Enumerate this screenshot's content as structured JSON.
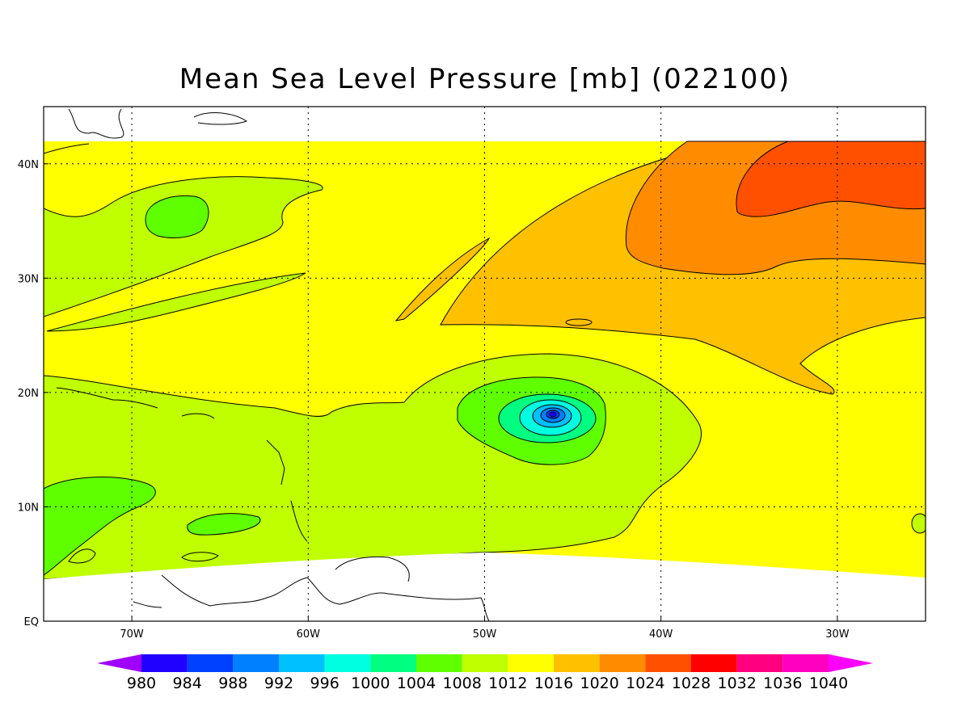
{
  "title": "Mean Sea Level Pressure [mb] (022100)",
  "map": {
    "lon_range": [
      -75,
      -25
    ],
    "lat_range": [
      0,
      45
    ],
    "x_ticks": [
      {
        "lon": -70,
        "label": "70W"
      },
      {
        "lon": -60,
        "label": "60W"
      },
      {
        "lon": -50,
        "label": "50W"
      },
      {
        "lon": -40,
        "label": "40W"
      },
      {
        "lon": -30,
        "label": "30W"
      }
    ],
    "y_ticks": [
      {
        "lat": 0,
        "label": "EQ"
      },
      {
        "lat": 10,
        "label": "10N"
      },
      {
        "lat": 20,
        "label": "20N"
      },
      {
        "lat": 30,
        "label": "30N"
      },
      {
        "lat": 40,
        "label": "40N"
      }
    ],
    "grid": "dotted",
    "low_center": {
      "lon": -46,
      "lat": 18
    }
  },
  "colorbar": {
    "levels": [
      980,
      984,
      988,
      992,
      996,
      1000,
      1004,
      1008,
      1012,
      1016,
      1020,
      1024,
      1028,
      1032,
      1036,
      1040
    ],
    "labels": [
      "980",
      "984",
      "988",
      "992",
      "996",
      "1000",
      "1004",
      "1008",
      "1012",
      "1016",
      "1020",
      "1024",
      "1028",
      "1032",
      "1036",
      "1040"
    ],
    "colors": [
      "#a000ff",
      "#2000ff",
      "#0040ff",
      "#0080ff",
      "#00c0ff",
      "#00ffe0",
      "#00ff80",
      "#60ff00",
      "#c0ff00",
      "#ffff00",
      "#ffc000",
      "#ff8c00",
      "#ff5000",
      "#ff0000",
      "#ff0080",
      "#ff00c0",
      "#ff00ff"
    ]
  }
}
